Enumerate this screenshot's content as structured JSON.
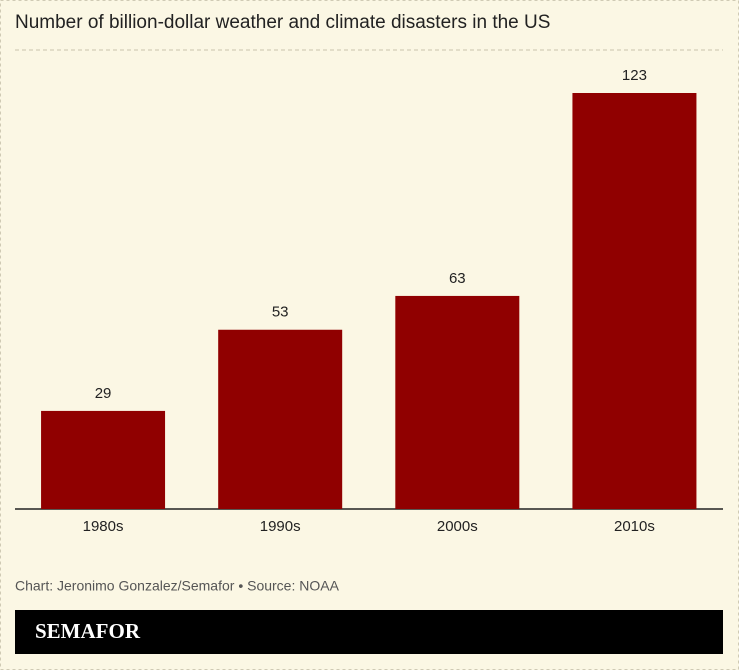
{
  "chart_data": {
    "type": "bar",
    "title": "Number of billion-dollar weather and climate disasters in the US",
    "categories": [
      "1980s",
      "1990s",
      "2000s",
      "2010s"
    ],
    "values": [
      29,
      53,
      63,
      123
    ],
    "color": "#900000",
    "source": "Chart: Jeronimo Gonzalez/Semafor • Source: NOAA",
    "brand": "SEMAFOR"
  }
}
